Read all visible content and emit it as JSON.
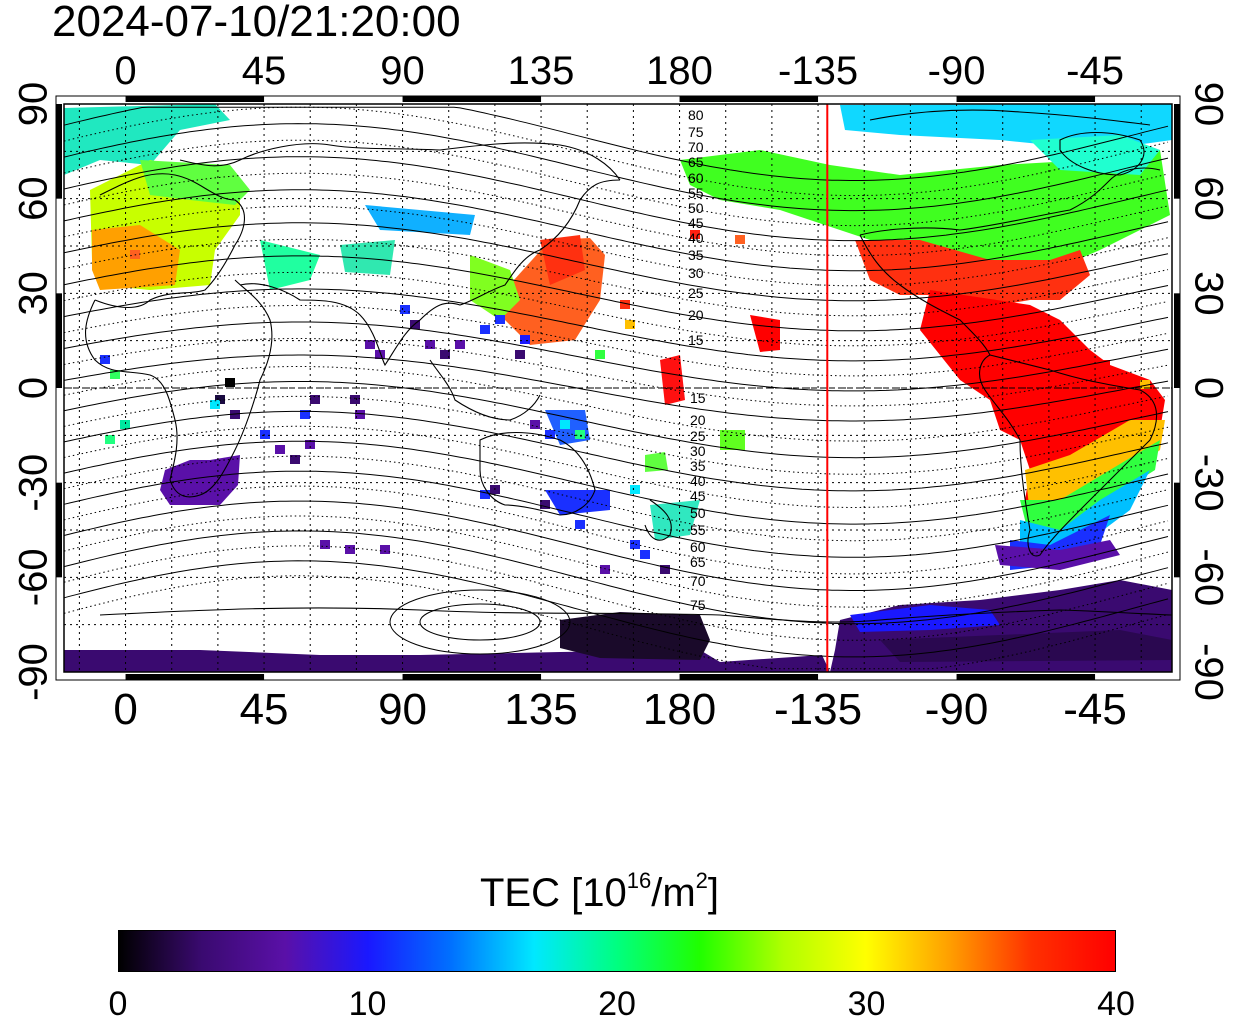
{
  "timestamp": "2024-07-10/21:20:00",
  "map": {
    "lon_ticks": [
      "0",
      "45",
      "90",
      "135",
      "180",
      "-135",
      "-90",
      "-45"
    ],
    "lat_ticks": [
      "90",
      "60",
      "30",
      "0",
      "-30",
      "-60",
      "-90"
    ],
    "contour_labels_north": [
      "80",
      "75",
      "70",
      "65",
      "60",
      "55",
      "50",
      "45",
      "40",
      "35",
      "30",
      "25",
      "20",
      "15"
    ],
    "contour_labels_south": [
      "15",
      "20",
      "25",
      "30",
      "35",
      "40",
      "45",
      "50",
      "55",
      "60",
      "65",
      "70",
      "75"
    ],
    "terminator_color": "#ff0000",
    "terminator_longitude": -132
  },
  "colorbar": {
    "title": "TEC  [10",
    "title_exp1": "16",
    "title_mid": "/m",
    "title_exp2": "2",
    "title_end": "]",
    "ticks": [
      "0",
      "10",
      "20",
      "30",
      "40"
    ],
    "range": [
      0,
      40
    ],
    "colors": [
      "#000000",
      "#3a0a70",
      "#5a10a8",
      "#1a18ff",
      "#0070ff",
      "#00e8ff",
      "#00ff80",
      "#20ff00",
      "#b0ff00",
      "#ffff00",
      "#ffa000",
      "#ff3000",
      "#ff0000"
    ]
  }
}
